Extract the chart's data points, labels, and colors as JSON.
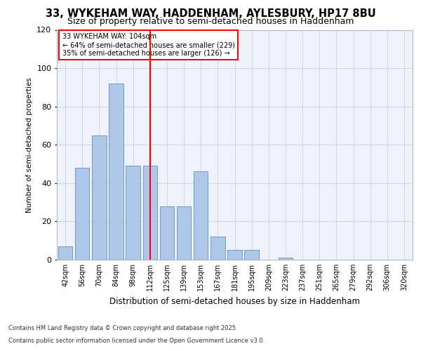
{
  "title1": "33, WYKEHAM WAY, HADDENHAM, AYLESBURY, HP17 8BU",
  "title2": "Size of property relative to semi-detached houses in Haddenham",
  "xlabel": "Distribution of semi-detached houses by size in Haddenham",
  "ylabel": "Number of semi-detached properties",
  "categories": [
    "42sqm",
    "56sqm",
    "70sqm",
    "84sqm",
    "98sqm",
    "112sqm",
    "125sqm",
    "139sqm",
    "153sqm",
    "167sqm",
    "181sqm",
    "195sqm",
    "209sqm",
    "223sqm",
    "237sqm",
    "251sqm",
    "265sqm",
    "279sqm",
    "292sqm",
    "306sqm",
    "320sqm"
  ],
  "values": [
    7,
    48,
    65,
    92,
    49,
    49,
    28,
    28,
    46,
    12,
    5,
    5,
    0,
    1,
    0,
    0,
    0,
    0,
    0,
    0,
    0
  ],
  "bar_color": "#aec6e8",
  "bar_edge_color": "#6090c0",
  "vline_x": 5,
  "vline_color": "red",
  "annotation_title": "33 WYKEHAM WAY: 104sqm",
  "annotation_line1": "← 64% of semi-detached houses are smaller (229)",
  "annotation_line2": "35% of semi-detached houses are larger (126) →",
  "ylim": [
    0,
    120
  ],
  "yticks": [
    0,
    20,
    40,
    60,
    80,
    100,
    120
  ],
  "footer1": "Contains HM Land Registry data © Crown copyright and database right 2025.",
  "footer2": "Contains public sector information licensed under the Open Government Licence v3.0.",
  "bg_color": "#eef2fa",
  "grid_color": "#c8d0e0"
}
